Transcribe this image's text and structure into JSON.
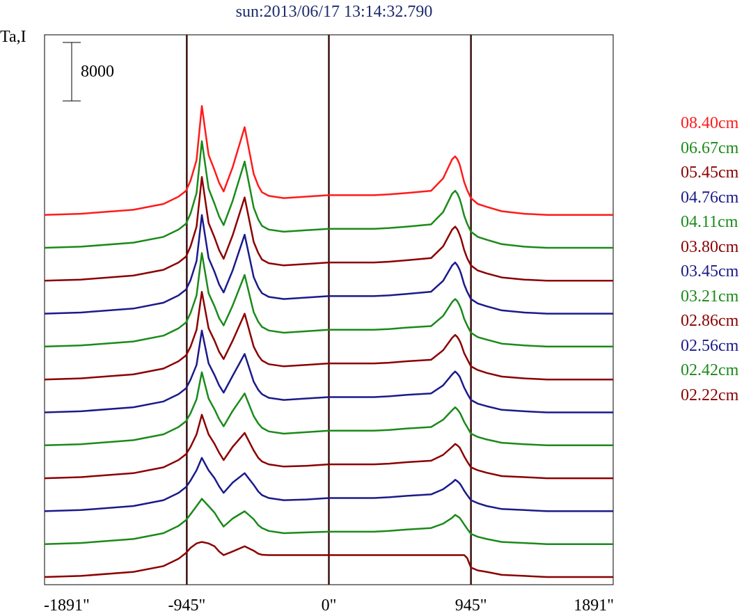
{
  "title": "sun:2013/06/17 13:14:32.790",
  "ylabel": "Ta,I",
  "scale_bar_label": "8000",
  "chart_data": {
    "type": "line",
    "title": "sun:2013/06/17 13:14:32.790",
    "ylabel": "Ta,I",
    "xlim": [
      -1891,
      1891
    ],
    "x_ticks": [
      {
        "value": -1891,
        "label": "-1891\""
      },
      {
        "value": -945,
        "label": "-945\""
      },
      {
        "value": 0,
        "label": "0\""
      },
      {
        "value": 945,
        "label": "945\""
      },
      {
        "value": 1891,
        "label": "1891\""
      }
    ],
    "vertical_lines": [
      -945,
      0,
      945
    ],
    "scale_bar": {
      "value": 8000,
      "label": "8000"
    },
    "grid": false,
    "legend_position": "right",
    "profile_x": [
      -1891,
      -1650,
      -1300,
      -1100,
      -1000,
      -950,
      -920,
      -880,
      -845,
      -800,
      -760,
      -730,
      -700,
      -640,
      -560,
      -500,
      -470,
      -445,
      -400,
      -300,
      -150,
      0,
      150,
      300,
      400,
      520,
      680,
      760,
      820,
      840,
      855,
      870,
      880,
      900,
      920,
      945,
      990,
      1050,
      1150,
      1300,
      1450,
      1891
    ],
    "series": [
      {
        "name": "08.40cm",
        "color": "#ff1a1a",
        "peak": 15000,
        "values": [
          0,
          150,
          700,
          1500,
          2500,
          3300,
          4700,
          7500,
          14900,
          8200,
          6100,
          4400,
          3200,
          6500,
          12000,
          5600,
          4000,
          3100,
          2600,
          2300,
          2500,
          2700,
          2700,
          2700,
          2800,
          3000,
          3300,
          5000,
          7600,
          8000,
          7600,
          6900,
          6100,
          4500,
          3400,
          2300,
          1500,
          1100,
          500,
          150,
          0,
          0
        ]
      },
      {
        "name": "06.67cm",
        "color": "#1a8a1a",
        "peak": 14600,
        "values": [
          0,
          150,
          700,
          1500,
          2500,
          3300,
          4700,
          7500,
          14600,
          8100,
          6000,
          4300,
          3100,
          6400,
          11800,
          5500,
          3900,
          3000,
          2500,
          2200,
          2400,
          2600,
          2600,
          2600,
          2700,
          2900,
          3200,
          4900,
          7400,
          7800,
          7400,
          6700,
          6000,
          4400,
          3300,
          2200,
          1500,
          1100,
          500,
          150,
          0,
          0
        ]
      },
      {
        "name": "05.45cm",
        "color": "#8b0000",
        "peak": 14200,
        "values": [
          0,
          150,
          700,
          1500,
          2500,
          3300,
          4700,
          7400,
          14200,
          7900,
          5900,
          4200,
          3000,
          6200,
          11400,
          5300,
          3800,
          2900,
          2400,
          2100,
          2300,
          2500,
          2500,
          2500,
          2600,
          2800,
          3100,
          4700,
          7000,
          7400,
          7000,
          6300,
          5700,
          4200,
          3100,
          2100,
          1400,
          1000,
          450,
          150,
          0,
          0
        ]
      },
      {
        "name": "04.76cm",
        "color": "#1a1a8b",
        "peak": 13500,
        "values": [
          0,
          150,
          700,
          1500,
          2500,
          3300,
          4600,
          7200,
          13500,
          7600,
          5700,
          4000,
          2900,
          5900,
          10800,
          5000,
          3600,
          2800,
          2300,
          2000,
          2200,
          2400,
          2400,
          2400,
          2500,
          2700,
          3000,
          4500,
          6600,
          7000,
          6600,
          6000,
          5400,
          4000,
          3000,
          2000,
          1400,
          1000,
          450,
          150,
          0,
          0
        ]
      },
      {
        "name": "04.11cm",
        "color": "#1a8a1a",
        "peak": 12800,
        "values": [
          0,
          150,
          700,
          1500,
          2500,
          3300,
          4600,
          7000,
          12800,
          7300,
          5500,
          3900,
          2900,
          5600,
          9800,
          4700,
          3400,
          2700,
          2200,
          1900,
          2100,
          2300,
          2300,
          2300,
          2400,
          2600,
          2800,
          4200,
          6100,
          6500,
          6200,
          5600,
          5100,
          3800,
          2900,
          1900,
          1300,
          950,
          400,
          150,
          0,
          0
        ]
      },
      {
        "name": "03.80cm",
        "color": "#8b0000",
        "peak": 12000,
        "values": [
          0,
          150,
          700,
          1500,
          2500,
          3300,
          4500,
          6800,
          12000,
          7000,
          5300,
          3800,
          2800,
          5300,
          9000,
          4500,
          3300,
          2600,
          2100,
          1800,
          2000,
          2200,
          2200,
          2200,
          2300,
          2500,
          2700,
          4000,
          5700,
          6100,
          5800,
          5300,
          4800,
          3600,
          2800,
          1800,
          1300,
          900,
          400,
          150,
          0,
          0
        ]
      },
      {
        "name": "03.45cm",
        "color": "#1a1a8b",
        "peak": 11200,
        "values": [
          0,
          150,
          700,
          1500,
          2500,
          3300,
          4500,
          6500,
          11200,
          6700,
          5100,
          3700,
          2700,
          5000,
          8000,
          4200,
          3100,
          2500,
          2000,
          1700,
          1900,
          2100,
          2100,
          2100,
          2200,
          2400,
          2600,
          3700,
          5200,
          5600,
          5300,
          4900,
          4400,
          3400,
          2600,
          1700,
          1200,
          850,
          350,
          150,
          0,
          0
        ]
      },
      {
        "name": "03.21cm",
        "color": "#1a8a1a",
        "peak": 10000,
        "values": [
          0,
          150,
          700,
          1500,
          2500,
          3300,
          4400,
          6300,
          10000,
          6400,
          4900,
          3600,
          2600,
          4700,
          7100,
          4000,
          3000,
          2400,
          1900,
          1600,
          1800,
          2000,
          2000,
          2000,
          2100,
          2300,
          2500,
          3500,
          4800,
          5200,
          4900,
          4500,
          4100,
          3200,
          2500,
          1600,
          1150,
          800,
          350,
          150,
          0,
          0
        ]
      },
      {
        "name": "02.86cm",
        "color": "#8b0000",
        "peak": 8700,
        "values": [
          0,
          150,
          700,
          1500,
          2500,
          3300,
          4300,
          6000,
          8700,
          6000,
          4700,
          3500,
          2500,
          4300,
          6200,
          3800,
          2800,
          2300,
          1900,
          1600,
          1700,
          1900,
          1900,
          1900,
          2000,
          2200,
          2400,
          3200,
          4300,
          4700,
          4500,
          4200,
          3800,
          3000,
          2300,
          1500,
          1100,
          750,
          300,
          150,
          0,
          0
        ]
      },
      {
        "name": "02.56cm",
        "color": "#1a1a8b",
        "peak": 7300,
        "values": [
          0,
          150,
          700,
          1500,
          2500,
          3300,
          4200,
          5600,
          7300,
          5600,
          4500,
          3400,
          2500,
          3900,
          5200,
          3600,
          2700,
          2200,
          1800,
          1500,
          1600,
          1800,
          1800,
          1800,
          1900,
          2100,
          2300,
          3000,
          3900,
          4300,
          4100,
          3800,
          3500,
          2800,
          2200,
          1500,
          1100,
          700,
          300,
          150,
          0,
          0
        ]
      },
      {
        "name": "02.42cm",
        "color": "#1a8a1a",
        "peak": 6200,
        "values": [
          0,
          150,
          700,
          1500,
          2500,
          3300,
          4100,
          5200,
          6200,
          5200,
          4300,
          3300,
          2400,
          3500,
          4500,
          3400,
          2600,
          2200,
          1800,
          1500,
          1600,
          1700,
          1700,
          1700,
          1800,
          2000,
          2200,
          2800,
          3600,
          4000,
          3800,
          3600,
          3300,
          2700,
          2100,
          1400,
          1000,
          700,
          300,
          150,
          0,
          0
        ]
      },
      {
        "name": "02.22cm",
        "color": "#8b0000",
        "peak": 4800,
        "values": [
          0,
          150,
          700,
          1500,
          2500,
          3300,
          4000,
          4600,
          4800,
          4600,
          4200,
          3500,
          3000,
          3500,
          4200,
          3600,
          3200,
          3050,
          3000,
          3000,
          3000,
          3000,
          3000,
          3000,
          3000,
          3000,
          3000,
          3000,
          3000,
          3000,
          3000,
          3000,
          3000,
          3000,
          2600,
          1300,
          900,
          700,
          300,
          150,
          0,
          0
        ]
      }
    ]
  }
}
